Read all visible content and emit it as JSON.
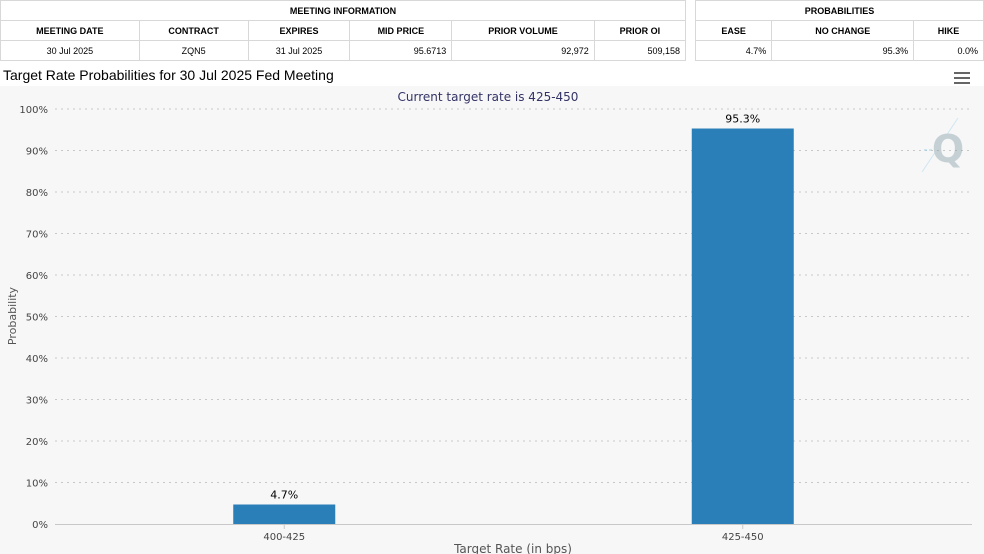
{
  "meeting_info": {
    "heading": "MEETING INFORMATION",
    "columns": [
      "MEETING DATE",
      "CONTRACT",
      "EXPIRES",
      "MID PRICE",
      "PRIOR VOLUME",
      "PRIOR OI"
    ],
    "row": [
      "30 Jul 2025",
      "ZQN5",
      "31 Jul 2025",
      "95.6713",
      "92,972",
      "509,158"
    ]
  },
  "probabilities": {
    "heading": "PROBABILITIES",
    "columns": [
      "EASE",
      "NO CHANGE",
      "HIKE"
    ],
    "row": [
      "4.7%",
      "95.3%",
      "0.0%"
    ]
  },
  "menu_icon": "hamburger-menu-icon",
  "watermark_icon": "q-logo-icon",
  "colors": {
    "bar": "#2b7fb9",
    "grid": "#c8c8c8",
    "subtitle": "#333366"
  },
  "chart_data": {
    "type": "bar",
    "title": "Target Rate Probabilities for 30 Jul 2025 Fed Meeting",
    "subtitle": "Current target rate is 425-450",
    "categories": [
      "400-425",
      "425-450"
    ],
    "values": [
      4.7,
      95.3
    ],
    "data_labels": [
      "4.7%",
      "95.3%"
    ],
    "xlabel": "Target Rate (in bps)",
    "ylabel": "Probability",
    "ylim": [
      0,
      100
    ],
    "yticks": [
      "0%",
      "10%",
      "20%",
      "30%",
      "40%",
      "50%",
      "60%",
      "70%",
      "80%",
      "90%",
      "100%"
    ],
    "grid": true,
    "legend": "none"
  }
}
